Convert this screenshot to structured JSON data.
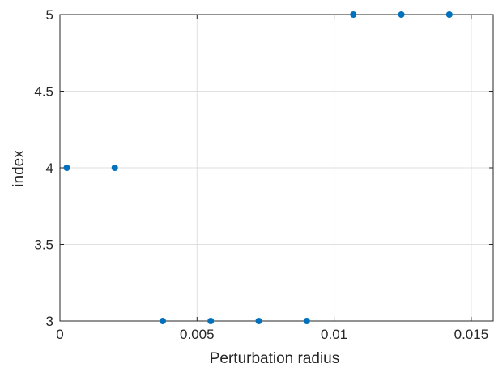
{
  "chart_data": {
    "type": "scatter",
    "xlabel": "Perturbation radius",
    "ylabel": "index",
    "xlim": [
      0,
      0.0158
    ],
    "ylim": [
      3,
      5
    ],
    "xticks": [
      0,
      0.005,
      0.01,
      0.015
    ],
    "xtick_labels": [
      "0",
      "0.005",
      "0.01",
      "0.015"
    ],
    "yticks": [
      3,
      3.5,
      4,
      4.5,
      5
    ],
    "ytick_labels": [
      "3",
      "3.5",
      "4",
      "4.5",
      "5"
    ],
    "grid": true,
    "box": true,
    "series": [
      {
        "color": "#0072bd",
        "points": [
          {
            "x": 0.00025,
            "y": 4
          },
          {
            "x": 0.002,
            "y": 4
          },
          {
            "x": 0.00375,
            "y": 3
          },
          {
            "x": 0.0055,
            "y": 3
          },
          {
            "x": 0.00725,
            "y": 3
          },
          {
            "x": 0.009,
            "y": 3
          },
          {
            "x": 0.0107,
            "y": 5
          },
          {
            "x": 0.01245,
            "y": 5
          },
          {
            "x": 0.0142,
            "y": 5
          }
        ]
      }
    ]
  }
}
